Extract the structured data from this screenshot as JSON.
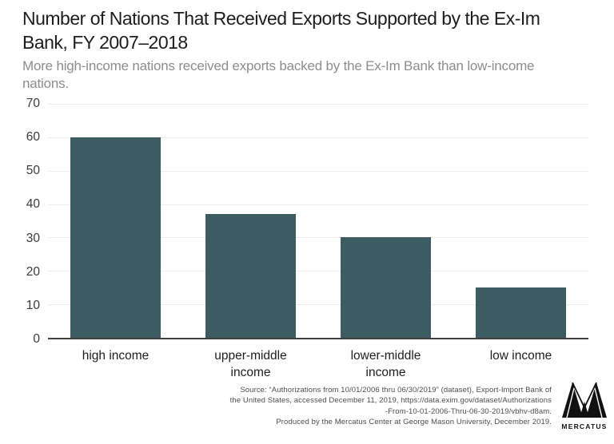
{
  "header": {
    "title": "Number of Nations That Received Exports Supported by the Ex-Im Bank, FY 2007–2018",
    "subtitle": "More high-income nations received exports backed by the Ex-Im Bank than low-income nations."
  },
  "chart_data": {
    "type": "bar",
    "title": "Number of Nations That Received Exports Supported by the Ex-Im Bank, FY 2007–2018",
    "categories": [
      "high income",
      "upper-middle\nincome",
      "lower-middle\nincome",
      "low income"
    ],
    "values": [
      60,
      37,
      30,
      15
    ],
    "xlabel": "",
    "ylabel": "",
    "ylim": [
      0,
      70
    ],
    "ytick_step": 10,
    "yticks": [
      0,
      10,
      20,
      30,
      40,
      50,
      60,
      70
    ],
    "grid": "horizontal",
    "legend": "none",
    "bar_color": "#3d5c62",
    "axis_color": "#414141",
    "gridline_color": "#ebebeb"
  },
  "footer": {
    "source_lines": [
      "Source: “Authorizations from 10/01/2006 thru 06/30/2019” (dataset), Export-Import Bank of",
      "the United States, accessed December 11, 2019, https://data.exim.gov/dataset/Authorizations",
      "-From-10-01-2006-Thru-06-30-2019/vbhv-d8am.",
      "Produced by the Mercatus Center at George Mason University, December 2019."
    ],
    "logo_text": "MERCATUS"
  }
}
